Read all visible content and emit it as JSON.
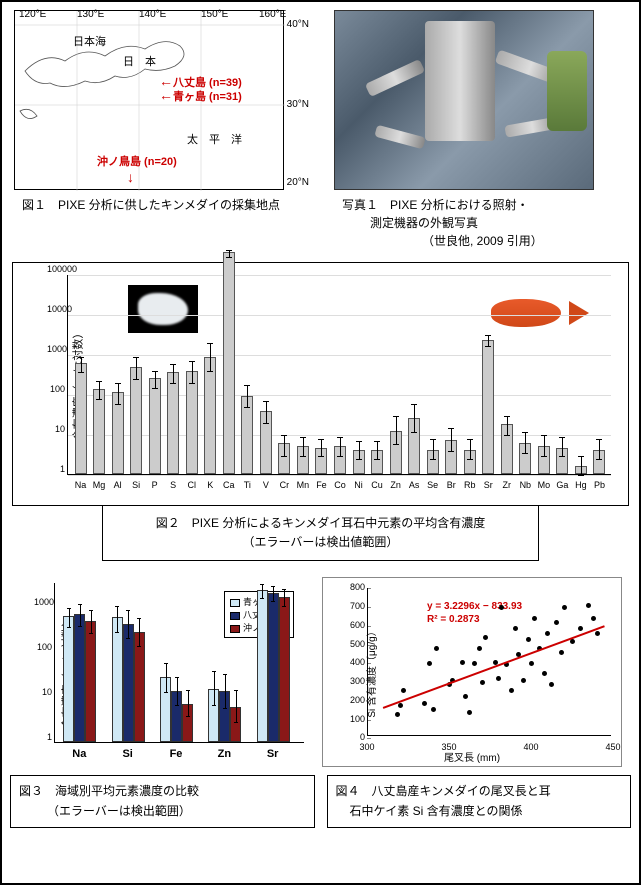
{
  "fig1": {
    "caption": "図１　PIXE 分析に供したキンメダイの採集地点",
    "lon_labels": [
      "120°E",
      "130°E",
      "140°E",
      "150°E",
      "160°E"
    ],
    "lat_labels": [
      "40°N",
      "30°N",
      "20°N"
    ],
    "sea_label": "日本海",
    "japan_label": "日　本",
    "pacific_label": "太　平　洋",
    "sites": [
      {
        "name": "八丈島 (n=39)"
      },
      {
        "name": "青ヶ島 (n=31)"
      },
      {
        "name": "沖ノ鳥島 (n=20)"
      }
    ]
  },
  "photo1": {
    "caption_l1": "写真１　PIXE 分析における照射・",
    "caption_l2": "測定機器の外観写真",
    "caption_l3": "（世良他, 2009 引用）"
  },
  "fig2": {
    "caption_l1": "図２　PIXE 分析によるキンメダイ耳石中元素の平均含有濃度",
    "caption_l2": "（エラーバーは検出値範囲）",
    "ylabel": "含有濃度（μg/g:対数）",
    "ylim": [
      1,
      100000
    ],
    "yticks": [
      1,
      10,
      100,
      1000,
      10000,
      100000
    ],
    "elements": [
      "Na",
      "Mg",
      "Al",
      "Si",
      "P",
      "S",
      "Cl",
      "K",
      "Ca",
      "Ti",
      "V",
      "Cr",
      "Mn",
      "Fe",
      "Co",
      "Ni",
      "Cu",
      "Zn",
      "As",
      "Se",
      "Br",
      "Rb",
      "Sr",
      "Zr",
      "Nb",
      "Mo",
      "Ga",
      "Hg",
      "Pb"
    ],
    "values": [
      600,
      130,
      110,
      470,
      250,
      350,
      370,
      850,
      350000,
      90,
      38,
      6,
      5,
      4.5,
      5,
      4,
      4,
      12,
      25,
      4,
      7,
      4,
      2300,
      18,
      6,
      5,
      4.5,
      1.6,
      4
    ],
    "err_hi": [
      900,
      220,
      200,
      900,
      400,
      600,
      700,
      2000,
      420000,
      180,
      70,
      10,
      9,
      8,
      9,
      7,
      7,
      30,
      60,
      8,
      15,
      8,
      3200,
      30,
      12,
      10,
      9,
      3,
      8
    ],
    "err_lo": [
      380,
      80,
      60,
      250,
      150,
      200,
      200,
      400,
      280000,
      50,
      20,
      3,
      3,
      3,
      3,
      2.5,
      2.5,
      6,
      12,
      2.5,
      4,
      2.5,
      1700,
      10,
      3.5,
      3,
      3,
      1,
      2.5
    ],
    "bar_color": "#cccccc",
    "grid_color": "#e0e0e0"
  },
  "fig3": {
    "caption_l1": "図３　海域別平均元素濃度の比較",
    "caption_l2": "（エラーバーは検出範囲）",
    "ylabel": "含有濃度（μg/g:対数）",
    "yticks": [
      1,
      10,
      100,
      1000
    ],
    "legend": [
      "青ヶ島産",
      "八丈島産",
      "沖ノ鳥島産"
    ],
    "colors": [
      "#cfe8f5",
      "#1a2a6a",
      "#8a1818"
    ],
    "elements": [
      "Na",
      "Si",
      "Fe",
      "Zn",
      "Sr"
    ],
    "values": [
      [
        620,
        700,
        480
      ],
      [
        600,
        420,
        280
      ],
      [
        28,
        14,
        7
      ],
      [
        15,
        14,
        6
      ],
      [
        2400,
        2000,
        1700
      ]
    ],
    "err_hi": [
      [
        1000,
        1200,
        900
      ],
      [
        1100,
        900,
        600
      ],
      [
        60,
        30,
        15
      ],
      [
        40,
        35,
        15
      ],
      [
        3400,
        3000,
        2600
      ]
    ],
    "err_lo": [
      [
        380,
        400,
        280
      ],
      [
        300,
        220,
        140
      ],
      [
        14,
        7,
        4
      ],
      [
        7,
        6,
        3
      ],
      [
        1700,
        1400,
        1100
      ]
    ]
  },
  "fig4": {
    "caption_l1": "図４　八丈島産キンメダイの尾叉長と耳",
    "caption_l2": "石中ケイ素 Si 含有濃度との関係",
    "ylabel": "Si 含有濃度（μg/g）",
    "xlabel": "尾叉長 (mm)",
    "xlim": [
      300,
      450
    ],
    "xticks": [
      300,
      350,
      400,
      450
    ],
    "ylim": [
      0,
      800
    ],
    "yticks": [
      0,
      100,
      200,
      300,
      400,
      500,
      600,
      700,
      800
    ],
    "equation": "y = 3.2296x − 833.93",
    "r2": "R² = 0.2873",
    "line_color": "#cc0000",
    "points": [
      [
        318,
        130
      ],
      [
        320,
        180
      ],
      [
        322,
        260
      ],
      [
        335,
        190
      ],
      [
        338,
        400
      ],
      [
        340,
        155
      ],
      [
        342,
        480
      ],
      [
        350,
        290
      ],
      [
        352,
        310
      ],
      [
        358,
        410
      ],
      [
        360,
        225
      ],
      [
        362,
        140
      ],
      [
        365,
        400
      ],
      [
        368,
        480
      ],
      [
        370,
        300
      ],
      [
        372,
        540
      ],
      [
        378,
        410
      ],
      [
        380,
        320
      ],
      [
        382,
        700
      ],
      [
        385,
        395
      ],
      [
        388,
        260
      ],
      [
        390,
        590
      ],
      [
        392,
        450
      ],
      [
        395,
        310
      ],
      [
        398,
        530
      ],
      [
        400,
        400
      ],
      [
        402,
        640
      ],
      [
        405,
        480
      ],
      [
        408,
        350
      ],
      [
        410,
        560
      ],
      [
        412,
        290
      ],
      [
        415,
        620
      ],
      [
        418,
        460
      ],
      [
        420,
        700
      ],
      [
        425,
        520
      ],
      [
        430,
        590
      ],
      [
        435,
        710
      ],
      [
        438,
        640
      ],
      [
        440,
        560
      ]
    ]
  }
}
